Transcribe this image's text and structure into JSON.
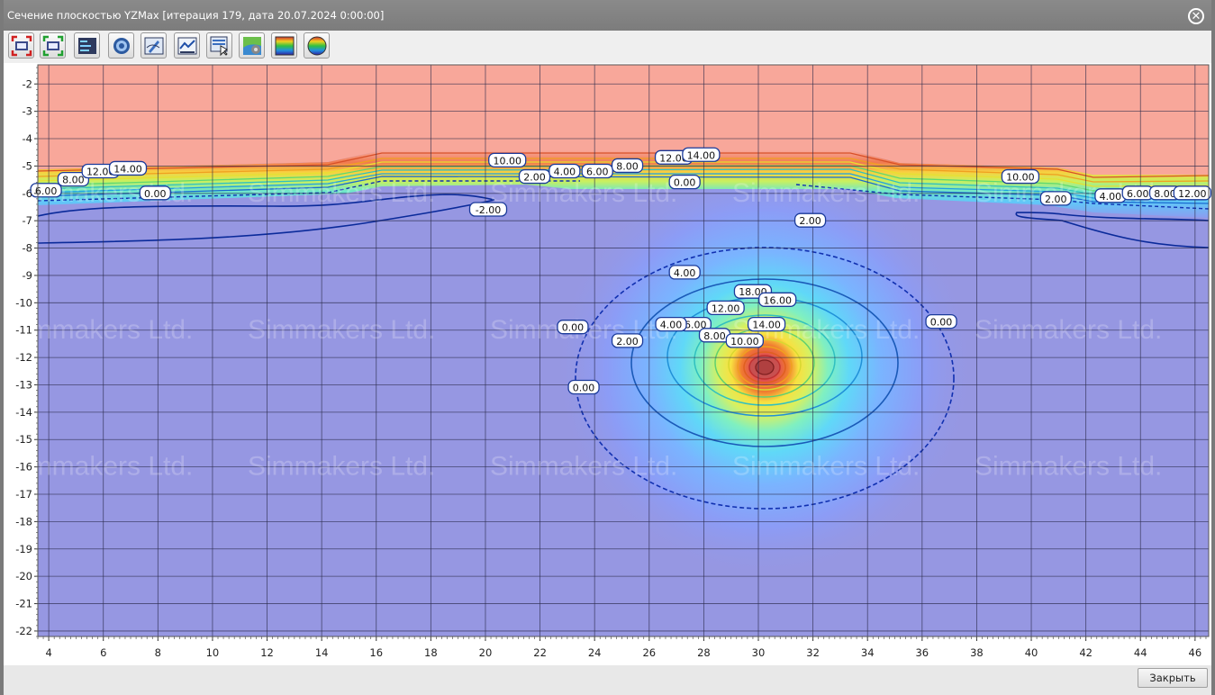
{
  "window": {
    "title": "Сечение плоскостью YZMax [итерация 179, дата 20.07.2024 0:00:00]",
    "close_symbol": "✕"
  },
  "toolbar": {
    "buttons": [
      {
        "icon": "fit-view-red-icon"
      },
      {
        "icon": "fit-view-green-icon"
      },
      {
        "icon": "legend-text-icon"
      },
      {
        "icon": "settings-gear-icon"
      },
      {
        "icon": "edit-contours-icon"
      },
      {
        "icon": "chart-tools-icon"
      },
      {
        "icon": "pointer-table-icon"
      },
      {
        "icon": "map-settings-icon"
      },
      {
        "icon": "rainbow-palette-icon"
      },
      {
        "icon": "color-circle-icon"
      }
    ]
  },
  "watermark": "Simmakers Ltd.",
  "chart_data": {
    "type": "heatmap",
    "title": "",
    "xlabel": "",
    "ylabel": "",
    "xlim": [
      3.6,
      46.5
    ],
    "ylim": [
      -22.2,
      -1.3
    ],
    "x_ticks": [
      4,
      6,
      8,
      10,
      12,
      14,
      16,
      18,
      20,
      22,
      24,
      26,
      28,
      30,
      32,
      34,
      36,
      38,
      40,
      42,
      44,
      46
    ],
    "y_ticks": [
      -2,
      -3,
      -4,
      -5,
      -6,
      -7,
      -8,
      -9,
      -10,
      -11,
      -12,
      -13,
      -14,
      -15,
      -16,
      -17,
      -18,
      -19,
      -20,
      -21,
      -22
    ],
    "grid": true,
    "colors": {
      "upper_zone": "#f8a79a",
      "lower_zone": "#9697e2",
      "hot_core": "#e06060",
      "contour_cold": "#0a2a9a"
    },
    "contour_labels": [
      {
        "text": "6.00",
        "x": 3.9,
        "y": -5.9
      },
      {
        "text": "8.00",
        "x": 4.9,
        "y": -5.5
      },
      {
        "text": "12.00",
        "x": 5.9,
        "y": -5.2
      },
      {
        "text": "14.00",
        "x": 6.9,
        "y": -5.1
      },
      {
        "text": "0.00",
        "x": 7.9,
        "y": -6.0
      },
      {
        "text": "-2.00",
        "x": 20.1,
        "y": -6.6
      },
      {
        "text": "10.00",
        "x": 20.8,
        "y": -4.8
      },
      {
        "text": "2.00",
        "x": 21.8,
        "y": -5.4
      },
      {
        "text": "4.00",
        "x": 22.9,
        "y": -5.2
      },
      {
        "text": "6.00",
        "x": 24.1,
        "y": -5.2
      },
      {
        "text": "8.00",
        "x": 25.2,
        "y": -5.0
      },
      {
        "text": "12.00",
        "x": 26.9,
        "y": -4.7
      },
      {
        "text": "14.00",
        "x": 27.9,
        "y": -4.6
      },
      {
        "text": "0.00",
        "x": 27.3,
        "y": -5.6
      },
      {
        "text": "2.00",
        "x": 31.9,
        "y": -7.0
      },
      {
        "text": "4.00",
        "x": 27.3,
        "y": -8.9
      },
      {
        "text": "18.00",
        "x": 29.8,
        "y": -9.6
      },
      {
        "text": "16.00",
        "x": 30.7,
        "y": -9.9
      },
      {
        "text": "12.00",
        "x": 28.8,
        "y": -10.2
      },
      {
        "text": "14.00",
        "x": 30.3,
        "y": -10.8
      },
      {
        "text": "6.00",
        "x": 27.7,
        "y": -10.8
      },
      {
        "text": "4.00",
        "x": 26.8,
        "y": -10.8
      },
      {
        "text": "8.00",
        "x": 28.4,
        "y": -11.2
      },
      {
        "text": "10.00",
        "x": 29.5,
        "y": -11.4
      },
      {
        "text": "2.00",
        "x": 25.2,
        "y": -11.4
      },
      {
        "text": "0.00",
        "x": 23.2,
        "y": -10.9
      },
      {
        "text": "0.00",
        "x": 23.6,
        "y": -13.1
      },
      {
        "text": "0.00",
        "x": 36.7,
        "y": -10.7
      },
      {
        "text": "10.00",
        "x": 39.6,
        "y": -5.4
      },
      {
        "text": "2.00",
        "x": 40.9,
        "y": -6.2
      },
      {
        "text": "4.00",
        "x": 42.9,
        "y": -6.1
      },
      {
        "text": "6.00",
        "x": 43.9,
        "y": -6.0
      },
      {
        "text": "8.00",
        "x": 44.9,
        "y": -6.0
      },
      {
        "text": "12.00",
        "x": 45.9,
        "y": -6.0
      }
    ]
  },
  "footer": {
    "close_label": "Закрыть"
  }
}
